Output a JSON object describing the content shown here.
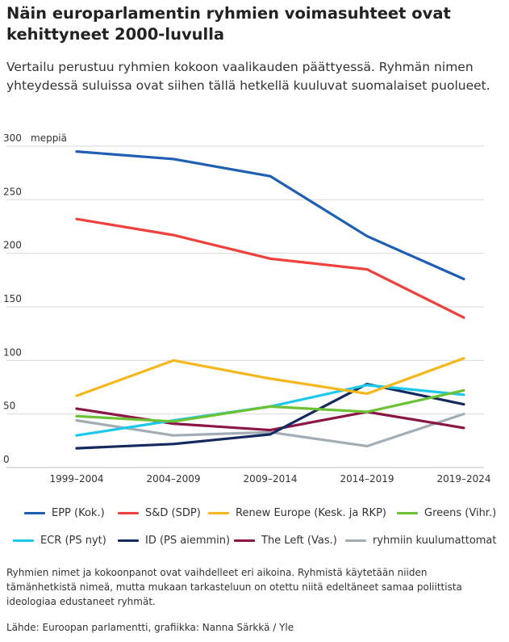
{
  "header": {
    "title": "Näin europarlamentin ryhmien voimasuhteet ovat kehittyneet 2000-luvulla",
    "subtitle": "Vertailu perustuu ryhmien kokoon vaalikauden päättyessä. Ryhmän nimen yhteydessä suluissa ovat siihen tällä hetkellä kuuluvat suomalaiset puolueet."
  },
  "chart_data": {
    "type": "line",
    "ylabel": "meppiä",
    "ylim": [
      0,
      300
    ],
    "yticks": [
      0,
      50,
      100,
      150,
      200,
      250,
      300
    ],
    "grid": true,
    "legend_position": "bottom",
    "categories": [
      "1999–2004",
      "2004–2009",
      "2009–2014",
      "2014–2019",
      "2019–2024"
    ],
    "series": [
      {
        "name": "EPP (Kok.)",
        "color": "#1f5fb3",
        "values": [
          295,
          288,
          272,
          216,
          176
        ]
      },
      {
        "name": "S&D (SDP)",
        "color": "#f0403c",
        "values": [
          232,
          217,
          195,
          185,
          140
        ]
      },
      {
        "name": "Renew Europe (Kesk. ja RKP)",
        "color": "#f5b81c",
        "values": [
          67,
          100,
          83,
          69,
          102
        ]
      },
      {
        "name": "Greens (Vihr.)",
        "color": "#6cc235",
        "values": [
          48,
          43,
          57,
          52,
          72
        ]
      },
      {
        "name": "ECR (PS nyt)",
        "color": "#1ec8ea",
        "values": [
          30,
          44,
          57,
          77,
          68
        ]
      },
      {
        "name": "ID (PS aiemmin)",
        "color": "#142a5f",
        "values": [
          18,
          22,
          31,
          78,
          59
        ]
      },
      {
        "name": "The Left (Vas.)",
        "color": "#8b1547",
        "values": [
          55,
          41,
          35,
          52,
          37
        ]
      },
      {
        "name": "ryhmiin kuulumattomat",
        "color": "#a2adb5",
        "values": [
          44,
          30,
          33,
          20,
          50
        ]
      }
    ]
  },
  "footer": {
    "note": "Ryhmien nimet ja kokoonpanot ovat vaihdelleet eri aikoina. Ryhmistä käytetään niiden tämänhetkistä nimeä, mutta mukaan tarkasteluun on otettu niitä edeltäneet samaa poliittista ideologiaa edustaneet ryhmät.",
    "source": "Lähde: Euroopan parlamentti, grafiikka: Nanna Särkkä / Yle"
  }
}
